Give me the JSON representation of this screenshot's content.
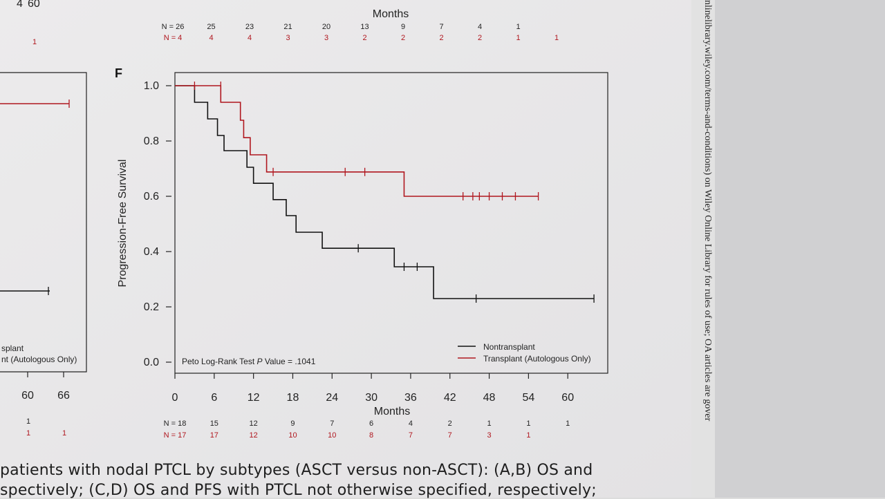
{
  "chart_data": {
    "type": "kaplan-meier",
    "panel_label": "F",
    "ylabel": "Progression-Free Survival",
    "xlabel": "Months",
    "y_ticks": [
      "0.0",
      "0.2",
      "0.4",
      "0.6",
      "0.8",
      "1.0"
    ],
    "x_ticks": [
      "0",
      "6",
      "12",
      "18",
      "24",
      "30",
      "36",
      "42",
      "48",
      "54",
      "60"
    ],
    "xlim": [
      0,
      66
    ],
    "ylim": [
      0,
      1.0
    ],
    "annotation_prefix": "Peto Log-Rank Test ",
    "annotation_italic": "P",
    "annotation_suffix": " Value = .1041",
    "legend_position": "bottom-right",
    "series": [
      {
        "name": "Nontransplant",
        "color": "#111111",
        "steps": [
          [
            0,
            1.0
          ],
          [
            3,
            0.94
          ],
          [
            5,
            0.88
          ],
          [
            6.5,
            0.82
          ],
          [
            7.5,
            0.765
          ],
          [
            11,
            0.705
          ],
          [
            12,
            0.647
          ],
          [
            15,
            0.588
          ],
          [
            17,
            0.53
          ],
          [
            18.5,
            0.47
          ],
          [
            22.5,
            0.412
          ],
          [
            33.5,
            0.345
          ],
          [
            39.5,
            0.23
          ],
          [
            64,
            0.23
          ]
        ],
        "censors": [
          [
            28,
            0.412
          ],
          [
            35,
            0.345
          ],
          [
            37,
            0.345
          ],
          [
            46,
            0.23
          ],
          [
            64,
            0.23
          ]
        ]
      },
      {
        "name": "Transplant (Autologous Only)",
        "color": "#b0161e",
        "steps": [
          [
            0,
            1.0
          ],
          [
            7,
            0.94
          ],
          [
            10,
            0.875
          ],
          [
            10.5,
            0.812
          ],
          [
            11.5,
            0.75
          ],
          [
            14,
            0.688
          ],
          [
            35,
            0.6
          ],
          [
            55.5,
            0.6
          ]
        ],
        "censors": [
          [
            3,
            1.0
          ],
          [
            7,
            1.0
          ],
          [
            15,
            0.688
          ],
          [
            26,
            0.688
          ],
          [
            29,
            0.688
          ],
          [
            44,
            0.6
          ],
          [
            45.5,
            0.6
          ],
          [
            46.5,
            0.6
          ],
          [
            48,
            0.6
          ],
          [
            50,
            0.6
          ],
          [
            52,
            0.6
          ],
          [
            55.5,
            0.6
          ]
        ]
      }
    ],
    "risk_table": {
      "months": [
        0,
        6,
        12,
        18,
        24,
        30,
        36,
        42,
        48,
        54,
        60
      ],
      "nontransplant": [
        "N = 18",
        "15",
        "12",
        "9",
        "7",
        "6",
        "4",
        "2",
        "1",
        "1",
        "1"
      ],
      "transplant": [
        "N = 17",
        "17",
        "12",
        "10",
        "10",
        "8",
        "7",
        "7",
        "3",
        "1",
        ""
      ]
    },
    "upper_panel": {
      "xlabel": "Months",
      "risk_months": [
        0,
        6,
        12,
        18,
        24,
        30,
        36,
        42,
        48,
        54,
        60
      ],
      "nontransplant": [
        "N = 26",
        "25",
        "23",
        "21",
        "20",
        "13",
        "9",
        "7",
        "4",
        "1",
        ""
      ],
      "transplant": [
        "N = 4",
        "4",
        "4",
        "3",
        "3",
        "2",
        "2",
        "2",
        "2",
        "1",
        "1"
      ]
    },
    "left_panel": {
      "x_ticks": [
        "60",
        "66"
      ],
      "legend_fragment_1": "splant",
      "legend_fragment_2": "nt (Autologous Only)",
      "risk_row_1": [
        "1",
        ""
      ],
      "risk_row_2": [
        "1",
        "1"
      ],
      "top_left_numbers": [
        "4",
        "60"
      ],
      "top_red_number": "1"
    }
  },
  "caption": {
    "line1": "patients with nodal PTCL by subtypes (ASCT versus non-ASCT): (A,B) OS and",
    "line2": "spectively; (C,D) OS and PFS with PTCL not otherwise specified, respectively;"
  },
  "side_text": "nlinelibrary.wiley.com/terms-and-conditions) on Wiley Online Library for rules of use; OA articles are gover"
}
